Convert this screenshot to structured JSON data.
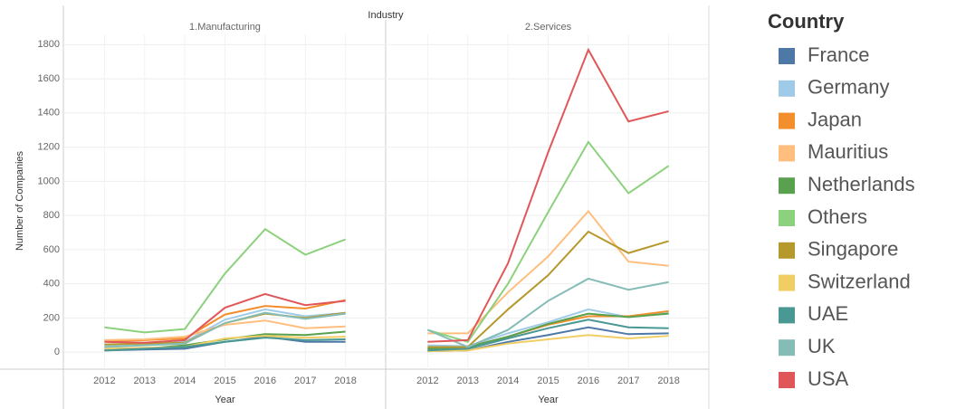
{
  "chart_data": [
    {
      "type": "line",
      "header": "Industry",
      "legend_title": "Country",
      "title": "1.Manufacturing",
      "x_label": "Year",
      "y_label": "Number of Companies",
      "x": [
        2012,
        2013,
        2014,
        2015,
        2016,
        2017,
        2018
      ],
      "xlim": [
        2011,
        2019
      ],
      "xticks": [
        2012,
        2013,
        2014,
        2015,
        2016,
        2017,
        2018
      ],
      "ylim": [
        -100,
        1860
      ],
      "yticks": [
        0,
        200,
        400,
        600,
        800,
        1000,
        1200,
        1400,
        1600,
        1800
      ],
      "grid": true,
      "series": [
        {
          "name": "France",
          "color": "#4e79a7",
          "values": [
            10,
            15,
            20,
            60,
            90,
            60,
            60
          ]
        },
        {
          "name": "Germany",
          "color": "#a0cbe8",
          "values": [
            40,
            50,
            60,
            190,
            250,
            210,
            230
          ]
        },
        {
          "name": "Japan",
          "color": "#f28e2b",
          "values": [
            65,
            70,
            80,
            220,
            270,
            255,
            305
          ]
        },
        {
          "name": "Mauritius",
          "color": "#ffbe7d",
          "values": [
            70,
            75,
            90,
            160,
            185,
            140,
            150
          ]
        },
        {
          "name": "Netherlands",
          "color": "#59a14f",
          "values": [
            10,
            20,
            40,
            75,
            105,
            100,
            120
          ]
        },
        {
          "name": "Others",
          "color": "#8cd17d",
          "values": [
            145,
            115,
            135,
            460,
            720,
            570,
            660
          ]
        },
        {
          "name": "Singapore",
          "color": "#b6992d",
          "values": [
            45,
            50,
            55,
            170,
            225,
            200,
            230
          ]
        },
        {
          "name": "Switzerland",
          "color": "#f1ce63",
          "values": [
            20,
            25,
            30,
            80,
            95,
            85,
            90
          ]
        },
        {
          "name": "UAE",
          "color": "#499894",
          "values": [
            10,
            20,
            30,
            60,
            85,
            70,
            75
          ]
        },
        {
          "name": "UK",
          "color": "#86bcb6",
          "values": [
            30,
            40,
            50,
            170,
            230,
            195,
            225
          ]
        },
        {
          "name": "USA",
          "color": "#e15759",
          "values": [
            60,
            55,
            70,
            260,
            340,
            275,
            300
          ]
        }
      ]
    },
    {
      "type": "line",
      "title": "2.Services",
      "x_label": "Year",
      "x": [
        2012,
        2013,
        2014,
        2015,
        2016,
        2017,
        2018
      ],
      "xlim": [
        2011,
        2019
      ],
      "xticks": [
        2012,
        2013,
        2014,
        2015,
        2016,
        2017,
        2018
      ],
      "ylim": [
        -100,
        1860
      ],
      "yticks": [
        0,
        200,
        400,
        600,
        800,
        1000,
        1200,
        1400,
        1600,
        1800
      ],
      "grid": true,
      "series": [
        {
          "name": "France",
          "color": "#4e79a7",
          "values": [
            5,
            10,
            60,
            100,
            145,
            105,
            110
          ]
        },
        {
          "name": "Germany",
          "color": "#a0cbe8",
          "values": [
            40,
            35,
            110,
            175,
            250,
            205,
            230
          ]
        },
        {
          "name": "Japan",
          "color": "#f28e2b",
          "values": [
            20,
            30,
            90,
            160,
            210,
            210,
            240
          ]
        },
        {
          "name": "Mauritius",
          "color": "#ffbe7d",
          "values": [
            110,
            110,
            350,
            560,
            825,
            530,
            505
          ]
        },
        {
          "name": "Netherlands",
          "color": "#59a14f",
          "values": [
            20,
            30,
            90,
            165,
            225,
            205,
            225
          ]
        },
        {
          "name": "Others",
          "color": "#8cd17d",
          "values": [
            130,
            60,
            400,
            820,
            1230,
            930,
            1090
          ]
        },
        {
          "name": "Singapore",
          "color": "#b6992d",
          "values": [
            30,
            30,
            250,
            450,
            705,
            580,
            650
          ]
        },
        {
          "name": "Switzerland",
          "color": "#f1ce63",
          "values": [
            5,
            10,
            50,
            75,
            100,
            80,
            95
          ]
        },
        {
          "name": "UAE",
          "color": "#499894",
          "values": [
            10,
            20,
            80,
            140,
            190,
            145,
            140
          ]
        },
        {
          "name": "UK",
          "color": "#86bcb6",
          "values": [
            130,
            30,
            130,
            300,
            430,
            365,
            410
          ]
        },
        {
          "name": "USA",
          "color": "#e15759",
          "values": [
            60,
            70,
            520,
            1170,
            1770,
            1350,
            1410
          ]
        }
      ]
    }
  ]
}
